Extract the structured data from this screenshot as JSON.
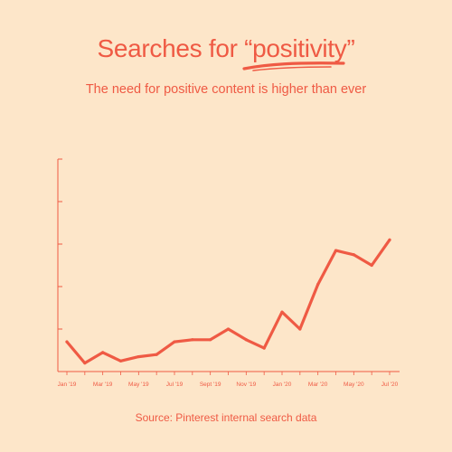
{
  "title_prefix": "Searches for ",
  "title_quote_open": "“",
  "title_highlight": "positivity",
  "title_quote_close": "”",
  "subtitle": "The need for positive content is higher than ever",
  "source": "Source: Pinterest internal search data",
  "colors": {
    "background": "#fde6c9",
    "accent": "#ef5a44"
  },
  "chart_data": {
    "type": "line",
    "x": [
      "Jan '19",
      "Feb '19",
      "Mar '19",
      "Apr '19",
      "May '19",
      "Jun '19",
      "Jul '19",
      "Aug '19",
      "Sept '19",
      "Oct '19",
      "Nov '19",
      "Dec '19",
      "Jan '20",
      "Feb '20",
      "Mar '20",
      "Apr '20",
      "May '20",
      "Jun '20",
      "Jul '20"
    ],
    "series": [
      {
        "values": [
          14,
          4,
          9,
          5,
          7,
          8,
          14,
          15,
          15,
          20,
          15,
          11,
          28,
          20,
          41,
          57,
          55,
          50,
          62
        ]
      }
    ],
    "xtick_labels": [
      "Jan '19",
      "Mar '19",
      "May '19",
      "Jul '19",
      "Sept '19",
      "Nov '19",
      "Jan '20",
      "Mar '20",
      "May '20",
      "Jul '20"
    ],
    "xtick_index": [
      0,
      2,
      4,
      6,
      8,
      10,
      12,
      14,
      16,
      18
    ],
    "ylim": [
      0,
      100
    ],
    "y_ticks": [
      0,
      20,
      40,
      60,
      80,
      100
    ],
    "grid": false,
    "legend": "none"
  }
}
